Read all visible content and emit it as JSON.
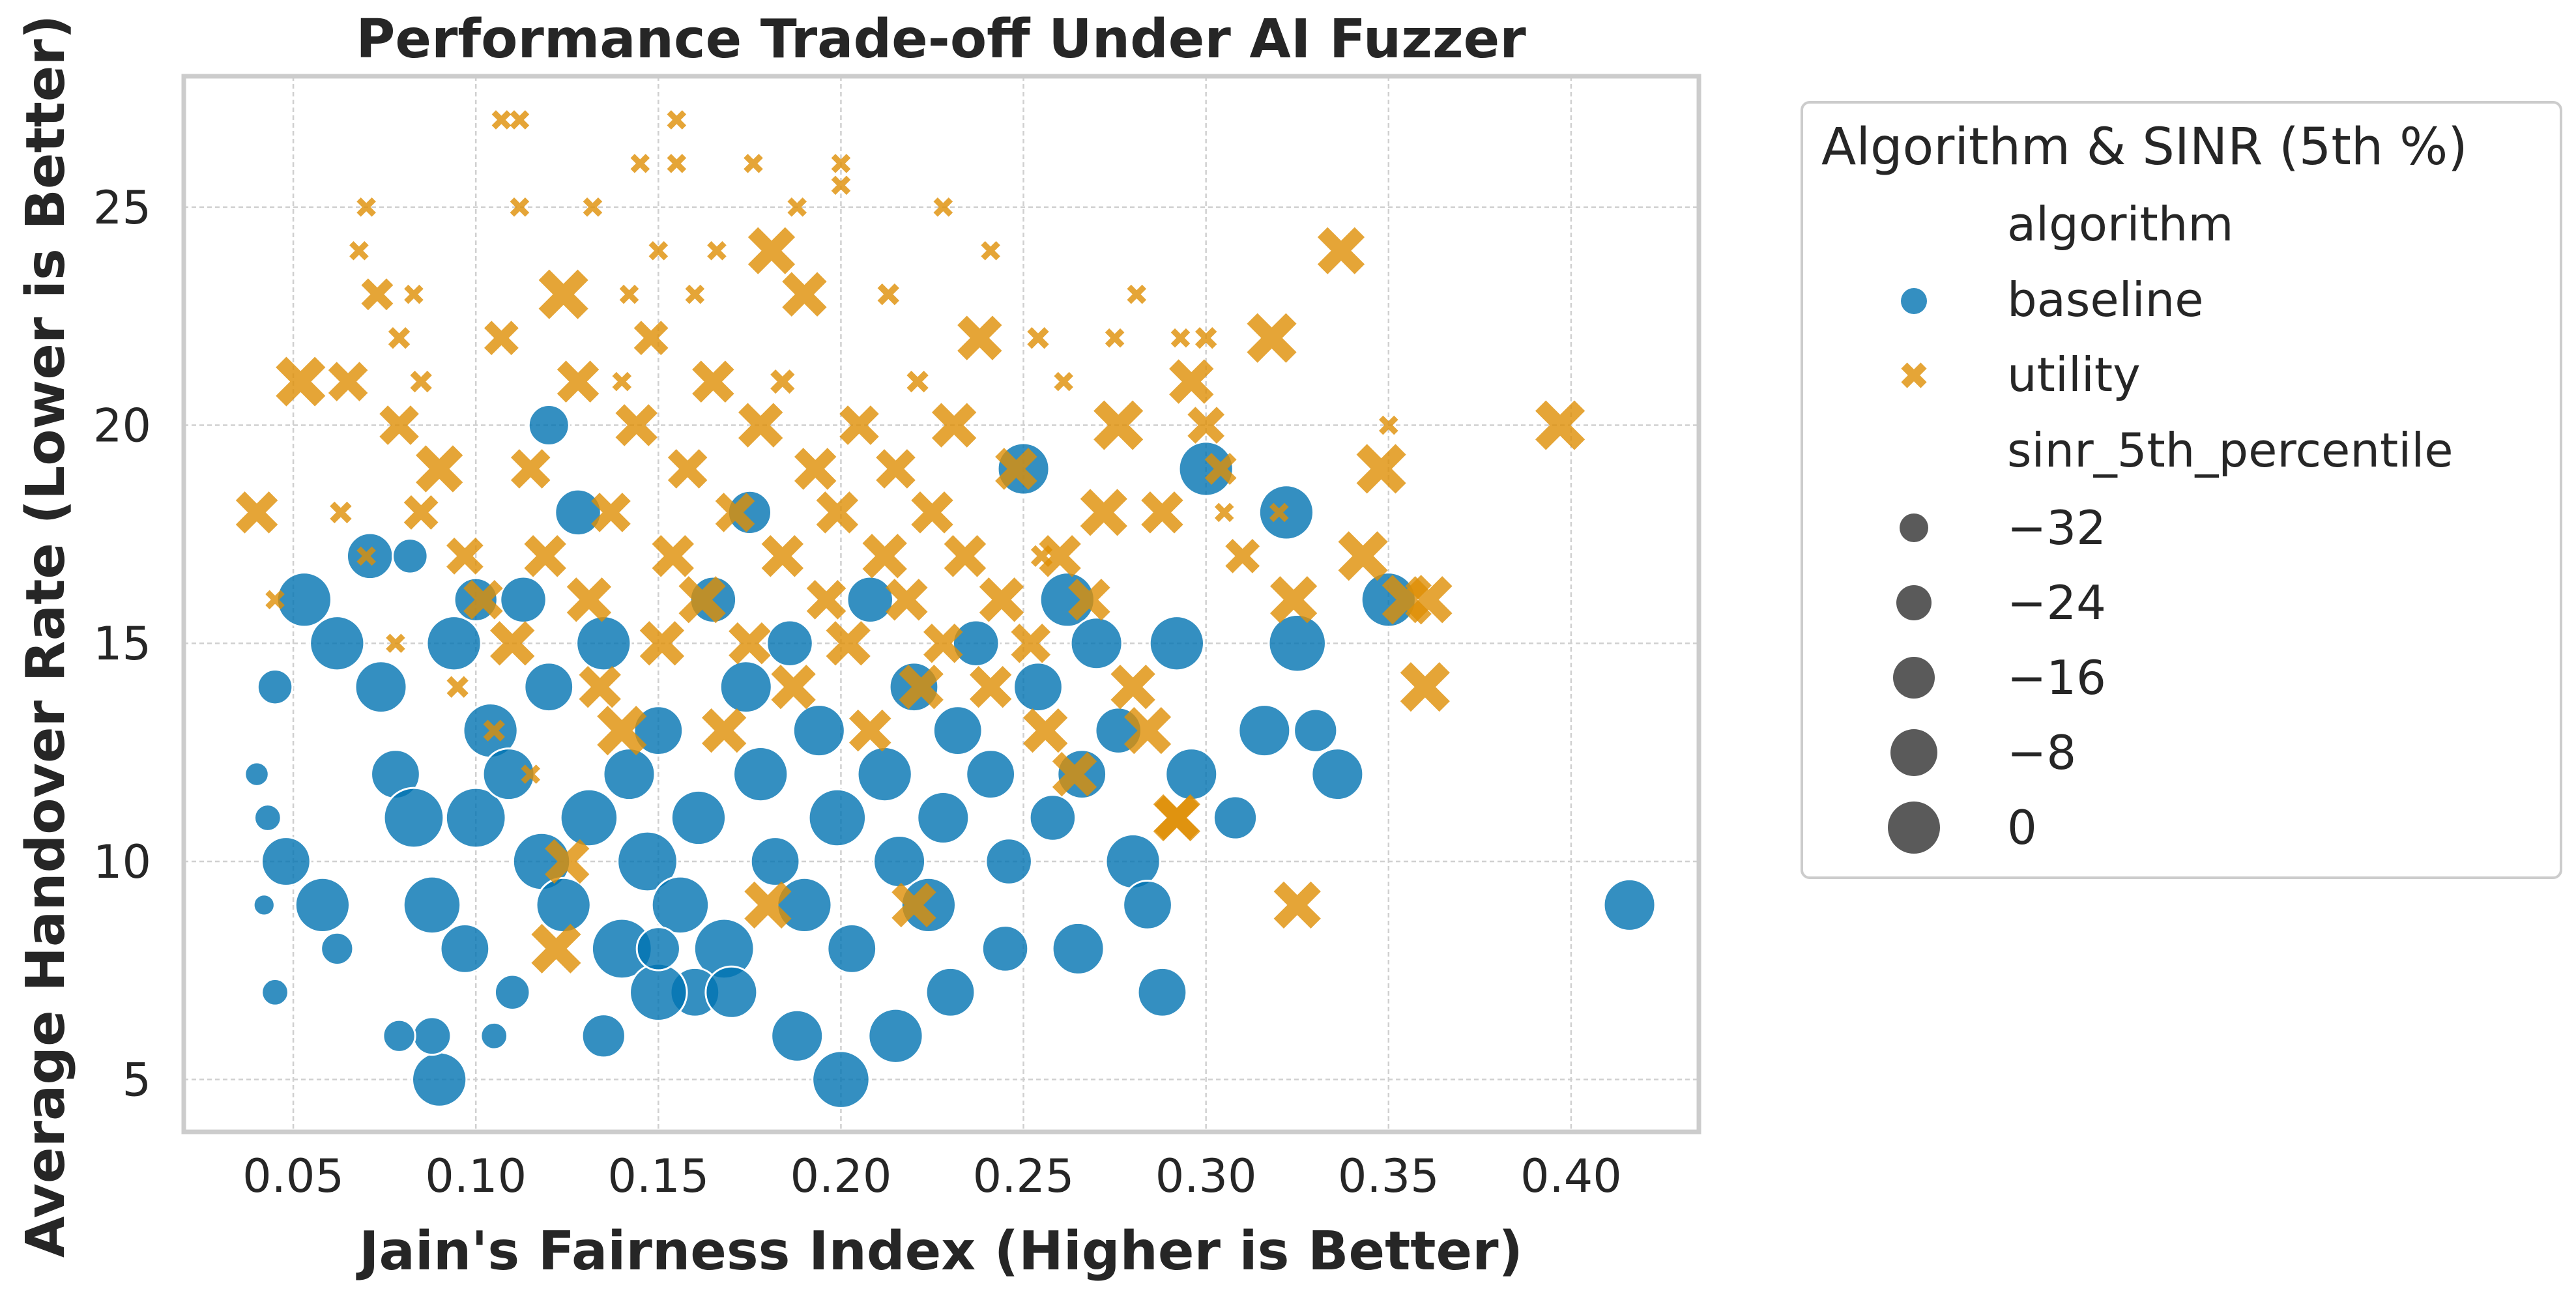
{
  "chart_data": {
    "type": "scatter",
    "title": "Performance Trade-off Under AI Fuzzer",
    "xlabel": "Jain's Fairness Index (Higher is Better)",
    "ylabel": "Average Handover Rate (Lower is Better)",
    "xlim": [
      0.02,
      0.435
    ],
    "ylim": [
      3.8,
      28.0
    ],
    "xticks": [
      "0.05",
      "0.10",
      "0.15",
      "0.20",
      "0.25",
      "0.30",
      "0.35",
      "0.40"
    ],
    "yticks": [
      "5",
      "10",
      "15",
      "20",
      "25"
    ],
    "grid": true,
    "legend": {
      "placement": "outside-right",
      "title": "Algorithm & SINR (5th %)",
      "hue_title": "algorithm",
      "size_title": "sinr_5th_percentile",
      "size_levels": [
        "−32",
        "−24",
        "−16",
        "−8",
        "0"
      ]
    },
    "colors": {
      "baseline": "#0173b2",
      "utility": "#de8f05",
      "size_legend": "#5a5a5a",
      "grid": "#d0d0d0"
    },
    "series": [
      {
        "name": "baseline",
        "marker": "circle",
        "points": [
          [
            0.048,
            10,
            -10
          ],
          [
            0.053,
            16,
            -6
          ],
          [
            0.062,
            15,
            -6
          ],
          [
            0.058,
            9,
            -6
          ],
          [
            0.071,
            17,
            -12
          ],
          [
            0.074,
            14,
            -8
          ],
          [
            0.078,
            12,
            -10
          ],
          [
            0.083,
            11,
            -2
          ],
          [
            0.088,
            9,
            -4
          ],
          [
            0.094,
            15,
            -6
          ],
          [
            0.097,
            8,
            -10
          ],
          [
            0.1,
            11,
            -2
          ],
          [
            0.104,
            13,
            -6
          ],
          [
            0.109,
            12,
            -8
          ],
          [
            0.113,
            16,
            -12
          ],
          [
            0.118,
            10,
            -4
          ],
          [
            0.12,
            14,
            -10
          ],
          [
            0.124,
            9,
            -6
          ],
          [
            0.128,
            18,
            -12
          ],
          [
            0.131,
            11,
            -4
          ],
          [
            0.135,
            15,
            -6
          ],
          [
            0.14,
            8,
            -2
          ],
          [
            0.142,
            12,
            -8
          ],
          [
            0.147,
            10,
            -2
          ],
          [
            0.15,
            13,
            -10
          ],
          [
            0.156,
            9,
            -4
          ],
          [
            0.161,
            11,
            -6
          ],
          [
            0.165,
            16,
            -12
          ],
          [
            0.168,
            8,
            -2
          ],
          [
            0.174,
            14,
            -8
          ],
          [
            0.178,
            12,
            -6
          ],
          [
            0.182,
            10,
            -10
          ],
          [
            0.186,
            15,
            -12
          ],
          [
            0.19,
            9,
            -6
          ],
          [
            0.194,
            13,
            -8
          ],
          [
            0.199,
            11,
            -4
          ],
          [
            0.203,
            8,
            -10
          ],
          [
            0.208,
            16,
            -12
          ],
          [
            0.212,
            12,
            -6
          ],
          [
            0.216,
            10,
            -8
          ],
          [
            0.22,
            14,
            -10
          ],
          [
            0.224,
            9,
            -6
          ],
          [
            0.228,
            11,
            -8
          ],
          [
            0.232,
            13,
            -10
          ],
          [
            0.237,
            15,
            -12
          ],
          [
            0.241,
            12,
            -10
          ],
          [
            0.246,
            10,
            -12
          ],
          [
            0.25,
            19,
            -8
          ],
          [
            0.254,
            14,
            -10
          ],
          [
            0.258,
            11,
            -12
          ],
          [
            0.262,
            16,
            -6
          ],
          [
            0.266,
            12,
            -10
          ],
          [
            0.27,
            15,
            -8
          ],
          [
            0.276,
            13,
            -12
          ],
          [
            0.28,
            10,
            -6
          ],
          [
            0.284,
            9,
            -10
          ],
          [
            0.288,
            7,
            -10
          ],
          [
            0.292,
            15,
            -6
          ],
          [
            0.296,
            12,
            -8
          ],
          [
            0.3,
            19,
            -6
          ],
          [
            0.308,
            11,
            -14
          ],
          [
            0.316,
            13,
            -8
          ],
          [
            0.322,
            18,
            -6
          ],
          [
            0.325,
            15,
            -4
          ],
          [
            0.336,
            12,
            -8
          ],
          [
            0.35,
            16,
            -6
          ],
          [
            0.416,
            9,
            -8
          ],
          [
            0.2,
            5,
            -4
          ],
          [
            0.09,
            5,
            -6
          ],
          [
            0.215,
            6,
            -6
          ],
          [
            0.188,
            6,
            -8
          ],
          [
            0.16,
            7,
            -10
          ],
          [
            0.15,
            7,
            -4
          ],
          [
            0.135,
            6,
            -14
          ],
          [
            0.088,
            6,
            -18
          ],
          [
            0.079,
            6,
            -22
          ],
          [
            0.105,
            6,
            -26
          ],
          [
            0.062,
            8,
            -22
          ],
          [
            0.045,
            7,
            -26
          ],
          [
            0.04,
            12,
            -28
          ],
          [
            0.043,
            11,
            -26
          ],
          [
            0.042,
            9,
            -30
          ],
          [
            0.045,
            14,
            -20
          ],
          [
            0.082,
            17,
            -20
          ],
          [
            0.1,
            16,
            -14
          ],
          [
            0.12,
            20,
            -16
          ],
          [
            0.175,
            18,
            -14
          ],
          [
            0.33,
            13,
            -14
          ],
          [
            0.265,
            8,
            -8
          ],
          [
            0.245,
            8,
            -12
          ],
          [
            0.23,
            7,
            -10
          ],
          [
            0.17,
            7,
            -8
          ],
          [
            0.15,
            8,
            -14
          ],
          [
            0.11,
            7,
            -20
          ]
        ]
      },
      {
        "name": "utility",
        "marker": "x",
        "points": [
          [
            0.04,
            18,
            -12
          ],
          [
            0.052,
            21,
            -6
          ],
          [
            0.065,
            21,
            -14
          ],
          [
            0.073,
            23,
            -20
          ],
          [
            0.079,
            20,
            -14
          ],
          [
            0.085,
            18,
            -18
          ],
          [
            0.09,
            19,
            -8
          ],
          [
            0.097,
            17,
            -16
          ],
          [
            0.102,
            16,
            -14
          ],
          [
            0.107,
            22,
            -18
          ],
          [
            0.11,
            15,
            -10
          ],
          [
            0.115,
            19,
            -14
          ],
          [
            0.119,
            17,
            -12
          ],
          [
            0.124,
            23,
            -6
          ],
          [
            0.128,
            21,
            -12
          ],
          [
            0.131,
            16,
            -10
          ],
          [
            0.134,
            14,
            -12
          ],
          [
            0.137,
            18,
            -14
          ],
          [
            0.14,
            13,
            -6
          ],
          [
            0.144,
            20,
            -12
          ],
          [
            0.148,
            22,
            -18
          ],
          [
            0.151,
            15,
            -10
          ],
          [
            0.154,
            17,
            -12
          ],
          [
            0.158,
            19,
            -14
          ],
          [
            0.162,
            16,
            -8
          ],
          [
            0.165,
            21,
            -12
          ],
          [
            0.168,
            13,
            -10
          ],
          [
            0.171,
            18,
            -14
          ],
          [
            0.175,
            15,
            -12
          ],
          [
            0.178,
            20,
            -10
          ],
          [
            0.181,
            24,
            -8
          ],
          [
            0.184,
            17,
            -12
          ],
          [
            0.187,
            14,
            -10
          ],
          [
            0.19,
            23,
            -10
          ],
          [
            0.193,
            19,
            -12
          ],
          [
            0.196,
            16,
            -14
          ],
          [
            0.199,
            18,
            -12
          ],
          [
            0.202,
            15,
            -10
          ],
          [
            0.205,
            20,
            -14
          ],
          [
            0.208,
            13,
            -12
          ],
          [
            0.212,
            17,
            -10
          ],
          [
            0.215,
            19,
            -14
          ],
          [
            0.218,
            16,
            -12
          ],
          [
            0.222,
            14,
            -10
          ],
          [
            0.225,
            18,
            -12
          ],
          [
            0.228,
            15,
            -14
          ],
          [
            0.231,
            20,
            -10
          ],
          [
            0.234,
            17,
            -12
          ],
          [
            0.238,
            22,
            -10
          ],
          [
            0.241,
            14,
            -12
          ],
          [
            0.244,
            16,
            -10
          ],
          [
            0.248,
            19,
            -12
          ],
          [
            0.252,
            15,
            -14
          ],
          [
            0.256,
            13,
            -10
          ],
          [
            0.26,
            17,
            -12
          ],
          [
            0.264,
            12,
            -10
          ],
          [
            0.268,
            16,
            -12
          ],
          [
            0.272,
            18,
            -8
          ],
          [
            0.276,
            20,
            -6
          ],
          [
            0.28,
            14,
            -10
          ],
          [
            0.284,
            13,
            -8
          ],
          [
            0.288,
            18,
            -12
          ],
          [
            0.292,
            11,
            -8
          ],
          [
            0.296,
            21,
            -10
          ],
          [
            0.3,
            20,
            -16
          ],
          [
            0.304,
            19,
            -20
          ],
          [
            0.31,
            17,
            -18
          ],
          [
            0.318,
            22,
            -6
          ],
          [
            0.324,
            16,
            -8
          ],
          [
            0.337,
            24,
            -8
          ],
          [
            0.343,
            17,
            -6
          ],
          [
            0.348,
            19,
            -6
          ],
          [
            0.355,
            16,
            -6
          ],
          [
            0.36,
            14,
            -6
          ],
          [
            0.361,
            16,
            -8
          ],
          [
            0.397,
            20,
            -6
          ],
          [
            0.325,
            9,
            -8
          ],
          [
            0.292,
            11,
            -10
          ],
          [
            0.122,
            8,
            -6
          ],
          [
            0.18,
            9,
            -8
          ],
          [
            0.22,
            9,
            -10
          ],
          [
            0.125,
            10,
            -10
          ],
          [
            0.155,
            27,
            -30
          ],
          [
            0.107,
            27,
            -30
          ],
          [
            0.112,
            27,
            -30
          ],
          [
            0.145,
            26,
            -30
          ],
          [
            0.155,
            26,
            -30
          ],
          [
            0.2,
            26,
            -30
          ],
          [
            0.2,
            25.5,
            -30
          ],
          [
            0.176,
            26,
            -30
          ],
          [
            0.188,
            25,
            -30
          ],
          [
            0.112,
            25,
            -30
          ],
          [
            0.132,
            25,
            -30
          ],
          [
            0.15,
            24,
            -30
          ],
          [
            0.166,
            24,
            -30
          ],
          [
            0.228,
            25,
            -30
          ],
          [
            0.241,
            24,
            -30
          ],
          [
            0.281,
            23,
            -30
          ],
          [
            0.293,
            22,
            -30
          ],
          [
            0.275,
            22,
            -30
          ],
          [
            0.07,
            25,
            -30
          ],
          [
            0.068,
            24,
            -30
          ],
          [
            0.083,
            23,
            -30
          ],
          [
            0.079,
            22,
            -28
          ],
          [
            0.085,
            21,
            -28
          ],
          [
            0.142,
            23,
            -30
          ],
          [
            0.16,
            23,
            -30
          ],
          [
            0.14,
            21,
            -30
          ],
          [
            0.184,
            21,
            -26
          ],
          [
            0.213,
            23,
            -28
          ],
          [
            0.221,
            21,
            -28
          ],
          [
            0.254,
            22,
            -28
          ],
          [
            0.261,
            21,
            -30
          ],
          [
            0.3,
            22,
            -28
          ],
          [
            0.35,
            20,
            -30
          ],
          [
            0.305,
            18,
            -30
          ],
          [
            0.255,
            17,
            -28
          ],
          [
            0.07,
            17,
            -30
          ],
          [
            0.063,
            18,
            -28
          ],
          [
            0.045,
            16,
            -30
          ],
          [
            0.078,
            15,
            -30
          ],
          [
            0.095,
            14,
            -28
          ],
          [
            0.105,
            13,
            -28
          ],
          [
            0.115,
            12,
            -30
          ],
          [
            0.32,
            18,
            -30
          ]
        ]
      }
    ]
  }
}
